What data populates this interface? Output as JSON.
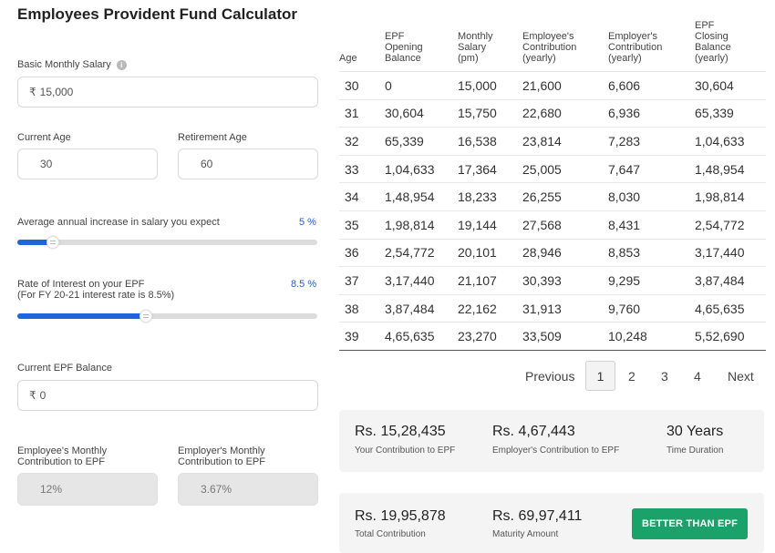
{
  "title": "Employees Provident Fund Calculator",
  "inputs": {
    "basic_salary": {
      "label": "Basic Monthly Salary",
      "currency": "₹",
      "value": "15,000",
      "info_icon": "info-icon"
    },
    "current_age": {
      "label": "Current Age",
      "value": "30"
    },
    "retirement_age": {
      "label": "Retirement Age",
      "value": "60"
    },
    "salary_increase": {
      "label": "Average annual increase in salary you expect",
      "value": "5 %",
      "slider_fraction": 0.12
    },
    "interest_rate": {
      "label": "Rate of Interest on your EPF",
      "sublabel": "(For FY 20-21 interest rate is 8.5%)",
      "value": "8.5 %",
      "slider_fraction": 0.43
    },
    "current_balance": {
      "label": "Current EPF Balance",
      "currency": "₹",
      "value": "0"
    },
    "employee_contribution": {
      "label_line1": "Employee's Monthly",
      "label_line2": "Contribution to EPF",
      "value": "12%"
    },
    "employer_contribution": {
      "label_line1": "Employer's Monthly",
      "label_line2": "Contribution to EPF",
      "value": "3.67%"
    }
  },
  "table": {
    "headers": [
      [
        "Age"
      ],
      [
        "EPF",
        "Opening",
        "Balance"
      ],
      [
        "Monthly",
        "Salary",
        "(pm)"
      ],
      [
        "Employee's",
        "Contribution",
        "(yearly)"
      ],
      [
        "Employer's",
        "Contribution",
        "(yearly)"
      ],
      [
        "EPF",
        "Closing",
        "Balance",
        "(yearly)"
      ]
    ],
    "rows": [
      [
        "30",
        "0",
        "15,000",
        "21,600",
        "6,606",
        "30,604"
      ],
      [
        "31",
        "30,604",
        "15,750",
        "22,680",
        "6,936",
        "65,339"
      ],
      [
        "32",
        "65,339",
        "16,538",
        "23,814",
        "7,283",
        "1,04,633"
      ],
      [
        "33",
        "1,04,633",
        "17,364",
        "25,005",
        "7,647",
        "1,48,954"
      ],
      [
        "34",
        "1,48,954",
        "18,233",
        "26,255",
        "8,030",
        "1,98,814"
      ],
      [
        "35",
        "1,98,814",
        "19,144",
        "27,568",
        "8,431",
        "2,54,772"
      ],
      [
        "36",
        "2,54,772",
        "20,101",
        "28,946",
        "8,853",
        "3,17,440"
      ],
      [
        "37",
        "3,17,440",
        "21,107",
        "30,393",
        "9,295",
        "3,87,484"
      ],
      [
        "38",
        "3,87,484",
        "22,162",
        "31,913",
        "9,760",
        "4,65,635"
      ],
      [
        "39",
        "4,65,635",
        "23,270",
        "33,509",
        "10,248",
        "5,52,690"
      ]
    ]
  },
  "pagination": {
    "previous": "Previous",
    "pages": [
      "1",
      "2",
      "3",
      "4"
    ],
    "current": "1",
    "next": "Next"
  },
  "summary": {
    "your_contribution": {
      "amount": "Rs. 15,28,435",
      "caption": "Your Contribution to EPF"
    },
    "employer_contribution": {
      "amount": "Rs. 4,67,443",
      "caption": "Employer's Contribution to EPF"
    },
    "duration": {
      "amount": "30 Years",
      "caption": "Time Duration"
    },
    "total_contribution": {
      "amount": "Rs. 19,95,878",
      "caption": "Total Contribution"
    },
    "maturity_amount": {
      "amount": "Rs. 69,97,411",
      "caption": "Maturity Amount"
    },
    "cta": "BETTER THAN EPF"
  },
  "colors": {
    "accent": "#1f67d6",
    "cta": "#1aa26a"
  }
}
